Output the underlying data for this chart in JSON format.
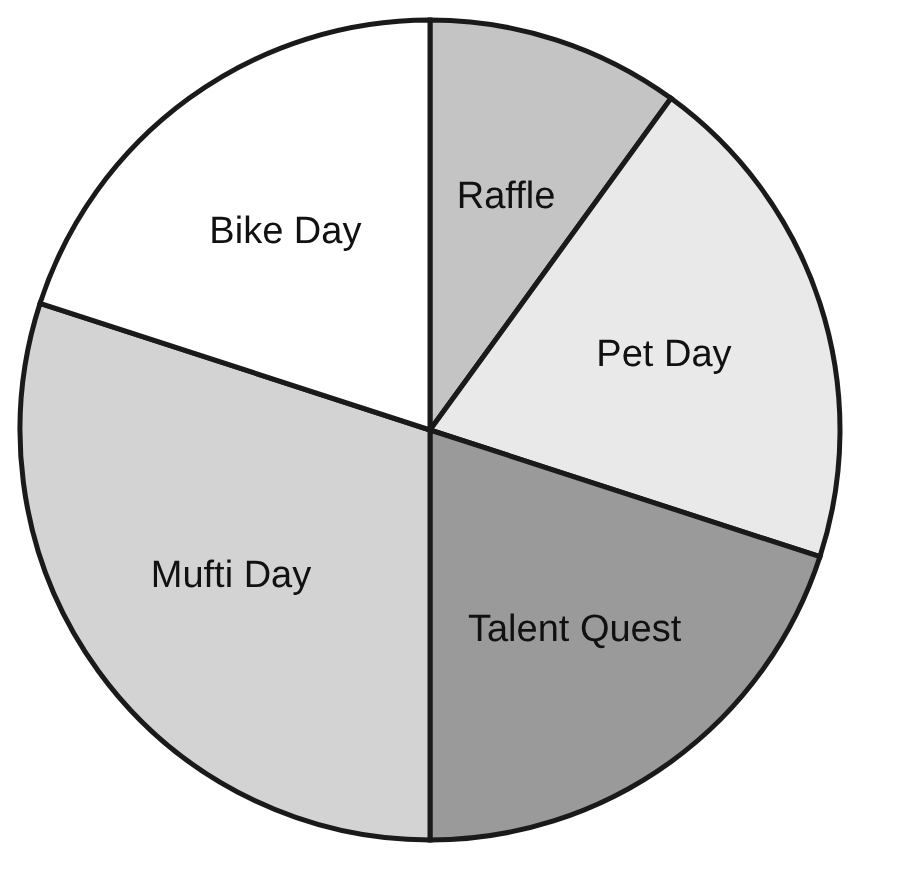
{
  "chart_data": {
    "type": "pie",
    "categories": [
      "Raffle",
      "Pet Day",
      "Talent Quest",
      "Mufti Day",
      "Bike Day"
    ],
    "values": [
      10,
      20,
      20,
      30,
      20
    ],
    "colors": [
      "#c4c4c4",
      "#e9e9e9",
      "#9a9a9a",
      "#d3d3d3",
      "#ffffff"
    ],
    "legend": false
  }
}
